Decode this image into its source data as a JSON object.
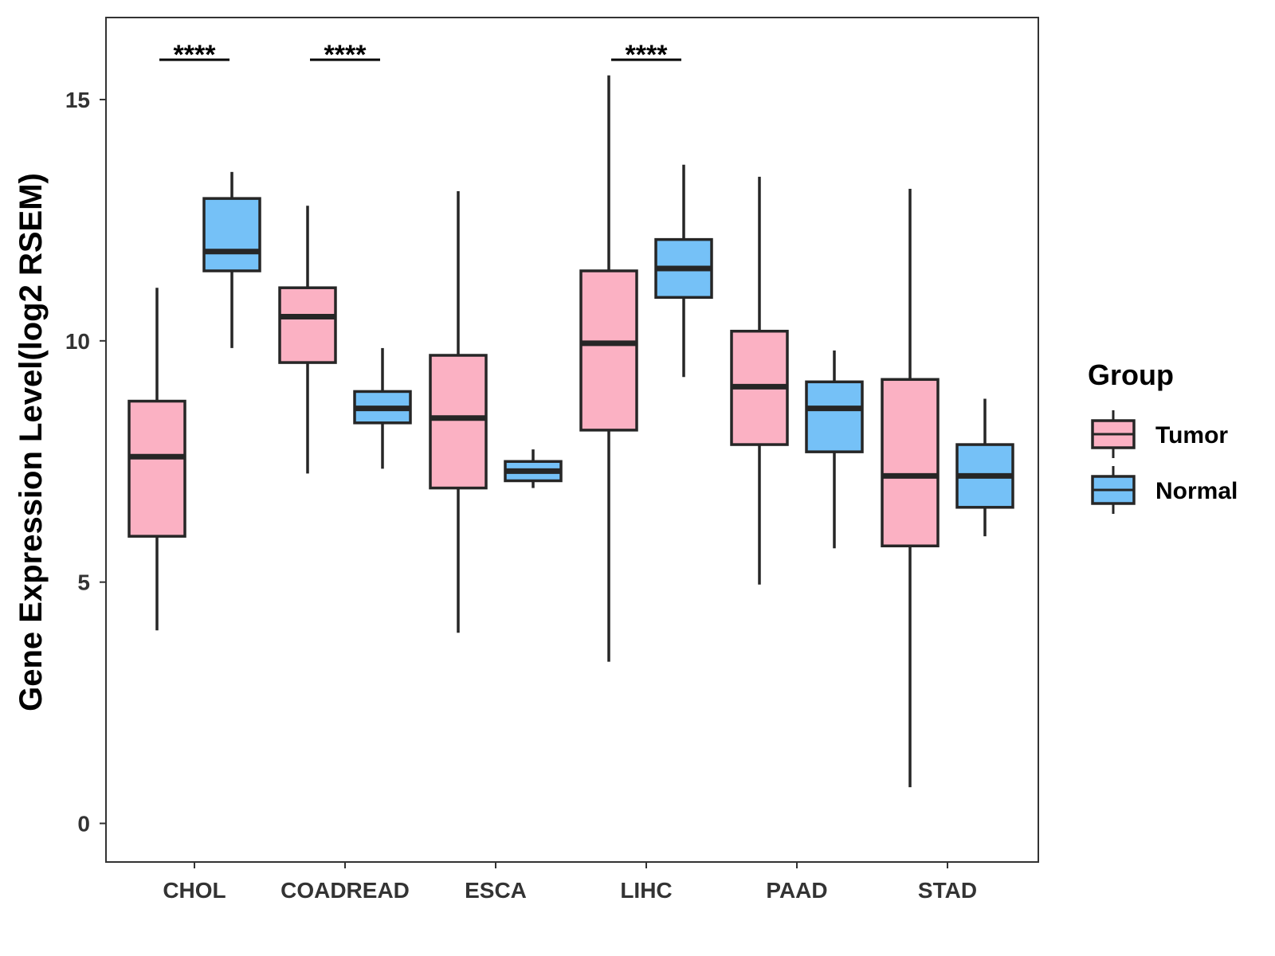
{
  "chart_data": {
    "type": "boxplot",
    "title": "",
    "xlabel": "",
    "ylabel": "Gene Expression Level(log2 RSEM)",
    "ylim": [
      -0.8,
      16.7
    ],
    "yticks": [
      0,
      5,
      10,
      15
    ],
    "ytick_labels": [
      "0",
      "5",
      "10",
      "15"
    ],
    "grid": false,
    "legend_position": "right",
    "legend": {
      "title": "Group",
      "items": [
        {
          "name": "Tumor",
          "color": "#FBB1C3"
        },
        {
          "name": "Normal",
          "color": "#75C1F7"
        }
      ]
    },
    "categories": [
      "CHOL",
      "COADREAD",
      "ESCA",
      "LIHC",
      "PAAD",
      "STAD"
    ],
    "series": [
      {
        "name": "Tumor",
        "color": "#FBB1C3",
        "boxes": [
          {
            "min": 4.0,
            "q1": 5.95,
            "median": 7.6,
            "q3": 8.75,
            "max": 11.1
          },
          {
            "min": 7.25,
            "q1": 9.55,
            "median": 10.5,
            "q3": 11.1,
            "max": 12.8
          },
          {
            "min": 3.95,
            "q1": 6.95,
            "median": 8.4,
            "q3": 9.7,
            "max": 13.1
          },
          {
            "min": 3.35,
            "q1": 8.15,
            "median": 9.95,
            "q3": 11.45,
            "max": 15.5
          },
          {
            "min": 4.95,
            "q1": 7.85,
            "median": 9.05,
            "q3": 10.2,
            "max": 13.4
          },
          {
            "min": 0.75,
            "q1": 5.75,
            "median": 7.2,
            "q3": 9.2,
            "max": 13.15
          }
        ]
      },
      {
        "name": "Normal",
        "color": "#75C1F7",
        "boxes": [
          {
            "min": 9.85,
            "q1": 11.45,
            "median": 11.85,
            "q3": 12.95,
            "max": 13.5
          },
          {
            "min": 7.35,
            "q1": 8.3,
            "median": 8.6,
            "q3": 8.95,
            "max": 9.85
          },
          {
            "min": 6.95,
            "q1": 7.1,
            "median": 7.3,
            "q3": 7.5,
            "max": 7.75
          },
          {
            "min": 9.25,
            "q1": 10.9,
            "median": 11.5,
            "q3": 12.1,
            "max": 13.65
          },
          {
            "min": 5.7,
            "q1": 7.7,
            "median": 8.6,
            "q3": 9.15,
            "max": 9.8
          },
          {
            "min": 5.95,
            "q1": 6.55,
            "median": 7.2,
            "q3": 7.85,
            "max": 8.8
          }
        ]
      }
    ],
    "annotations": [
      {
        "category": "CHOL",
        "text": "****"
      },
      {
        "category": "COADREAD",
        "text": "****"
      },
      {
        "category": "LIHC",
        "text": "****"
      }
    ]
  }
}
